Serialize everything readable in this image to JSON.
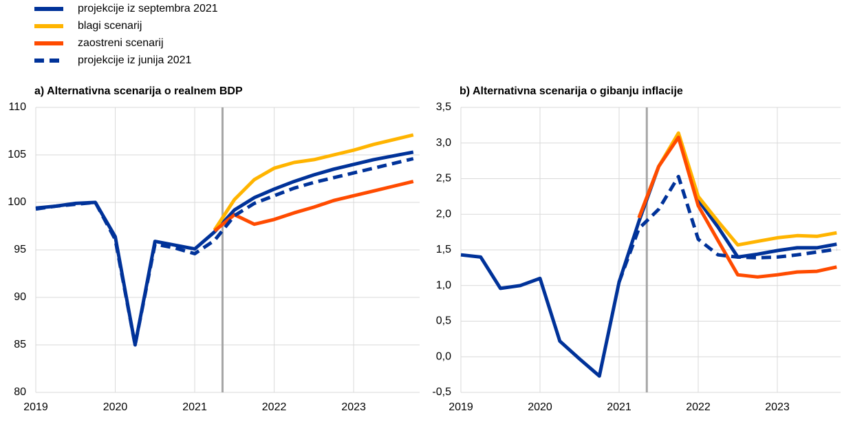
{
  "chart_data": [
    {
      "type": "line",
      "title": "a) Alternativna scenarija o realnem BDP",
      "x": [
        2019,
        2019.25,
        2019.5,
        2019.75,
        2020,
        2020.25,
        2020.5,
        2020.75,
        2021,
        2021.25,
        2021.5,
        2021.75,
        2022,
        2022.25,
        2022.5,
        2022.75,
        2023,
        2023.25,
        2023.5,
        2023.75
      ],
      "series": [
        {
          "name": "projekcije iz septembra 2021",
          "color": "#003299",
          "dashed": false,
          "values": [
            99.4,
            99.6,
            99.9,
            100.0,
            96.4,
            85.0,
            95.9,
            95.5,
            95.1,
            96.9,
            99.2,
            100.5,
            101.4,
            102.2,
            102.9,
            103.5,
            104.0,
            104.5,
            104.9,
            105.3
          ]
        },
        {
          "name": "blagi scenarij",
          "color": "#ffb400",
          "dashed": false,
          "values": [
            null,
            null,
            null,
            null,
            null,
            null,
            null,
            null,
            null,
            97.1,
            100.3,
            102.4,
            103.6,
            104.2,
            104.5,
            105.0,
            105.5,
            106.1,
            106.6,
            107.1
          ]
        },
        {
          "name": "zaostreni scenarij",
          "color": "#ff4b00",
          "dashed": false,
          "values": [
            null,
            null,
            null,
            null,
            null,
            null,
            null,
            null,
            null,
            97.0,
            98.7,
            97.7,
            98.2,
            98.9,
            99.5,
            100.2,
            100.7,
            101.2,
            101.7,
            102.2
          ]
        },
        {
          "name": "projekcije iz junija 2021",
          "color": "#003299",
          "dashed": true,
          "values": [
            99.3,
            99.6,
            99.8,
            100.0,
            96.1,
            85.0,
            95.6,
            95.2,
            94.6,
            96.0,
            98.6,
            99.9,
            100.7,
            101.5,
            102.1,
            102.6,
            103.1,
            103.6,
            104.1,
            104.6
          ]
        }
      ],
      "xlim": [
        2019,
        2023.83
      ],
      "xticks": [
        2019,
        2020,
        2021,
        2022,
        2023
      ],
      "ylim": [
        80,
        110
      ],
      "yticks": [
        80,
        85,
        90,
        95,
        100,
        105,
        110
      ],
      "vline": 2021.35,
      "grid": true
    },
    {
      "type": "line",
      "title": "b) Alternativna scenarija o gibanju inflacije",
      "x": [
        2019,
        2019.25,
        2019.5,
        2019.75,
        2020,
        2020.25,
        2020.5,
        2020.75,
        2021,
        2021.25,
        2021.5,
        2021.75,
        2022,
        2022.25,
        2022.5,
        2022.75,
        2023,
        2023.25,
        2023.5,
        2023.75
      ],
      "series": [
        {
          "color": "#003299",
          "dashed": false,
          "values": [
            1.43,
            1.4,
            0.96,
            1.0,
            1.1,
            0.22,
            -0.03,
            -0.27,
            1.05,
            1.9,
            2.67,
            3.12,
            2.2,
            1.82,
            1.4,
            1.44,
            1.49,
            1.53,
            1.53,
            1.58
          ]
        },
        {
          "color": "#ffb400",
          "dashed": false,
          "values": [
            null,
            null,
            null,
            null,
            null,
            null,
            null,
            null,
            null,
            1.95,
            2.67,
            3.14,
            2.25,
            1.9,
            1.57,
            1.62,
            1.67,
            1.7,
            1.69,
            1.74
          ]
        },
        {
          "color": "#ff4b00",
          "dashed": false,
          "values": [
            null,
            null,
            null,
            null,
            null,
            null,
            null,
            null,
            null,
            1.95,
            2.67,
            3.08,
            2.12,
            1.63,
            1.15,
            1.12,
            1.15,
            1.19,
            1.2,
            1.26
          ]
        },
        {
          "color": "#003299",
          "dashed": true,
          "values": [
            null,
            null,
            null,
            null,
            null,
            null,
            null,
            null,
            1.05,
            1.8,
            2.07,
            2.53,
            1.65,
            1.43,
            1.4,
            1.39,
            1.4,
            1.43,
            1.47,
            1.51
          ]
        }
      ],
      "xlim": [
        2019,
        2023.8
      ],
      "xticks": [
        2019,
        2020,
        2021,
        2022,
        2023
      ],
      "ylim": [
        -0.5,
        3.5
      ],
      "yticks": [
        {
          "value": -0.5,
          "label": "-0,5"
        },
        {
          "value": 0,
          "label": "0,0"
        },
        {
          "value": 0.5,
          "label": "0,5"
        },
        {
          "value": 1,
          "label": "1,0"
        },
        {
          "value": 1.5,
          "label": "1,5"
        },
        {
          "value": 2,
          "label": "2,0"
        },
        {
          "value": 2.5,
          "label": "2,5"
        },
        {
          "value": 3,
          "label": "3,0"
        },
        {
          "value": 3.5,
          "label": "3,5"
        }
      ],
      "vline": 2021.35,
      "grid": true
    }
  ]
}
